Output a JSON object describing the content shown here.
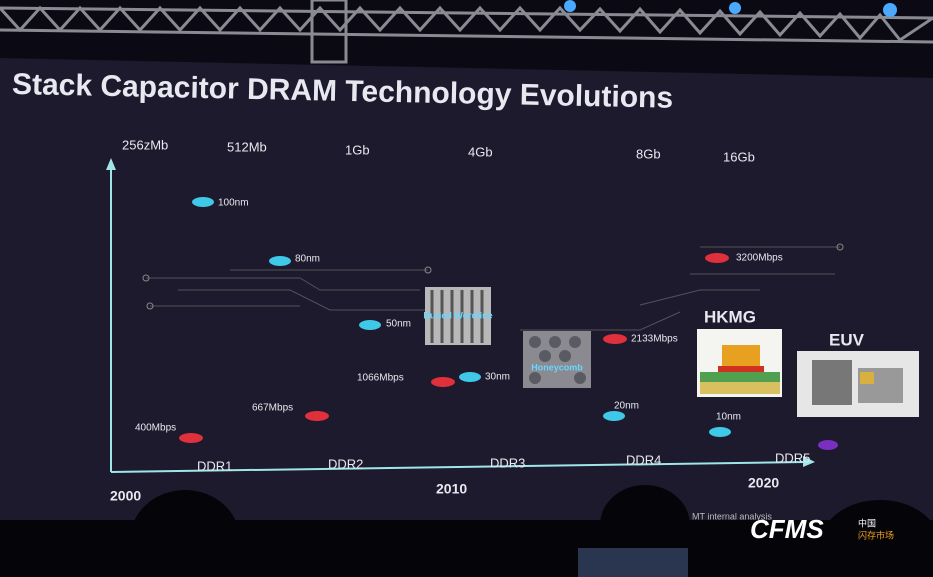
{
  "title": "Stack Capacitor DRAM Technology Evolutions",
  "densities": [
    "256zMb",
    "512Mb",
    "1Gb",
    "4Gb",
    "8Gb",
    "16Gb"
  ],
  "generations": [
    "DDR1",
    "DDR2",
    "DDR3",
    "DDR4",
    "DDR5"
  ],
  "years": [
    "2000",
    "2010",
    "2020"
  ],
  "nodes": [
    "100nm",
    "80nm",
    "50nm",
    "30nm",
    "20nm",
    "10nm"
  ],
  "speeds": [
    "400Mbps",
    "667Mbps",
    "1066Mbps",
    "2133Mbps",
    "3200Mbps"
  ],
  "images": {
    "buried": "Buried Wordline",
    "honeycomb": "Honeycomb",
    "hkmg": "HKMG",
    "euv": "EUV"
  },
  "footnote": "MT internal analysis",
  "logo": {
    "brand": "CFMS",
    "line1": "中国",
    "line2": "闪存市场"
  }
}
